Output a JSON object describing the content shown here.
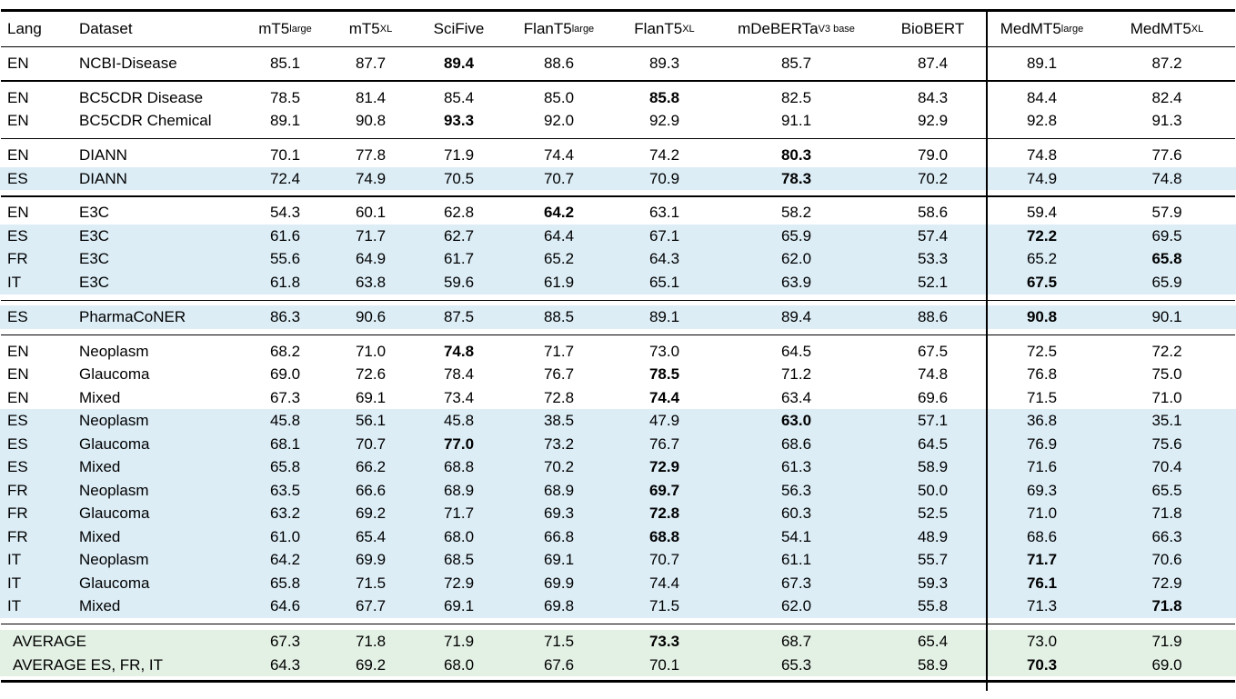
{
  "colors": {
    "highlight_blue": "#dcedf6",
    "highlight_green": "#e3f0e4",
    "rule": "#000000"
  },
  "table": {
    "columns": [
      {
        "label": "Lang",
        "sub": ""
      },
      {
        "label": "Dataset",
        "sub": ""
      },
      {
        "label": "mT5",
        "sub": "large"
      },
      {
        "label": "mT5",
        "sub": "XL"
      },
      {
        "label": "SciFive",
        "sub": ""
      },
      {
        "label": "FlanT5",
        "sub": "large"
      },
      {
        "label": "FlanT5",
        "sub": "XL"
      },
      {
        "label": "mDeBERTa",
        "sub": "V3 base"
      },
      {
        "label": "BioBERT",
        "sub": ""
      },
      {
        "label": "MedMT5",
        "sub": "large"
      },
      {
        "label": "MedMT5",
        "sub": "XL"
      }
    ],
    "sections": [
      {
        "rows": [
          {
            "lang": "EN",
            "dataset": "NCBI-Disease",
            "highlight": null,
            "bold": 2,
            "values": [
              "85.1",
              "87.7",
              "89.4",
              "88.6",
              "89.3",
              "85.7",
              "87.4",
              "89.1",
              "87.2"
            ]
          }
        ]
      },
      {
        "rows": [
          {
            "lang": "EN",
            "dataset": "BC5CDR Disease",
            "highlight": null,
            "bold": 4,
            "values": [
              "78.5",
              "81.4",
              "85.4",
              "85.0",
              "85.8",
              "82.5",
              "84.3",
              "84.4",
              "82.4"
            ]
          },
          {
            "lang": "EN",
            "dataset": "BC5CDR Chemical",
            "highlight": null,
            "bold": 2,
            "values": [
              "89.1",
              "90.8",
              "93.3",
              "92.0",
              "92.9",
              "91.1",
              "92.9",
              "92.8",
              "91.3"
            ]
          }
        ]
      },
      {
        "rows": [
          {
            "lang": "EN",
            "dataset": "DIANN",
            "highlight": null,
            "bold": 5,
            "values": [
              "70.1",
              "77.8",
              "71.9",
              "74.4",
              "74.2",
              "80.3",
              "79.0",
              "74.8",
              "77.6"
            ]
          },
          {
            "lang": "ES",
            "dataset": "DIANN",
            "highlight": "blue",
            "bold": 5,
            "values": [
              "72.4",
              "74.9",
              "70.5",
              "70.7",
              "70.9",
              "78.3",
              "70.2",
              "74.9",
              "74.8"
            ]
          }
        ]
      },
      {
        "rows": [
          {
            "lang": "EN",
            "dataset": "E3C",
            "highlight": null,
            "bold": 3,
            "values": [
              "54.3",
              "60.1",
              "62.8",
              "64.2",
              "63.1",
              "58.2",
              "58.6",
              "59.4",
              "57.9"
            ]
          },
          {
            "lang": "ES",
            "dataset": "E3C",
            "highlight": "blue",
            "bold": 7,
            "values": [
              "61.6",
              "71.7",
              "62.7",
              "64.4",
              "67.1",
              "65.9",
              "57.4",
              "72.2",
              "69.5"
            ]
          },
          {
            "lang": "FR",
            "dataset": "E3C",
            "highlight": "blue",
            "bold": 8,
            "values": [
              "55.6",
              "64.9",
              "61.7",
              "65.2",
              "64.3",
              "62.0",
              "53.3",
              "65.2",
              "65.8"
            ]
          },
          {
            "lang": "IT",
            "dataset": "E3C",
            "highlight": "blue",
            "bold": 7,
            "values": [
              "61.8",
              "63.8",
              "59.6",
              "61.9",
              "65.1",
              "63.9",
              "52.1",
              "67.5",
              "65.9"
            ]
          }
        ]
      },
      {
        "rows": [
          {
            "lang": "ES",
            "dataset": "PharmaCoNER",
            "highlight": "blue",
            "bold": 7,
            "values": [
              "86.3",
              "90.6",
              "87.5",
              "88.5",
              "89.1",
              "89.4",
              "88.6",
              "90.8",
              "90.1"
            ]
          }
        ]
      },
      {
        "rows": [
          {
            "lang": "EN",
            "dataset": "Neoplasm",
            "highlight": null,
            "bold": 2,
            "values": [
              "68.2",
              "71.0",
              "74.8",
              "71.7",
              "73.0",
              "64.5",
              "67.5",
              "72.5",
              "72.2"
            ]
          },
          {
            "lang": "EN",
            "dataset": "Glaucoma",
            "highlight": null,
            "bold": 4,
            "values": [
              "69.0",
              "72.6",
              "78.4",
              "76.7",
              "78.5",
              "71.2",
              "74.8",
              "76.8",
              "75.0"
            ]
          },
          {
            "lang": "EN",
            "dataset": "Mixed",
            "highlight": null,
            "bold": 4,
            "values": [
              "67.3",
              "69.1",
              "73.4",
              "72.8",
              "74.4",
              "63.4",
              "69.6",
              "71.5",
              "71.0"
            ]
          },
          {
            "lang": "ES",
            "dataset": "Neoplasm",
            "highlight": "blue",
            "bold": 5,
            "values": [
              "45.8",
              "56.1",
              "45.8",
              "38.5",
              "47.9",
              "63.0",
              "57.1",
              "36.8",
              "35.1"
            ]
          },
          {
            "lang": "ES",
            "dataset": "Glaucoma",
            "highlight": "blue",
            "bold": 2,
            "values": [
              "68.1",
              "70.7",
              "77.0",
              "73.2",
              "76.7",
              "68.6",
              "64.5",
              "76.9",
              "75.6"
            ]
          },
          {
            "lang": "ES",
            "dataset": "Mixed",
            "highlight": "blue",
            "bold": 4,
            "values": [
              "65.8",
              "66.2",
              "68.8",
              "70.2",
              "72.9",
              "61.3",
              "58.9",
              "71.6",
              "70.4"
            ]
          },
          {
            "lang": "FR",
            "dataset": "Neoplasm",
            "highlight": "blue",
            "bold": 4,
            "values": [
              "63.5",
              "66.6",
              "68.9",
              "68.9",
              "69.7",
              "56.3",
              "50.0",
              "69.3",
              "65.5"
            ]
          },
          {
            "lang": "FR",
            "dataset": "Glaucoma",
            "highlight": "blue",
            "bold": 4,
            "values": [
              "63.2",
              "69.2",
              "71.7",
              "69.3",
              "72.8",
              "60.3",
              "52.5",
              "71.0",
              "71.8"
            ]
          },
          {
            "lang": "FR",
            "dataset": "Mixed",
            "highlight": "blue",
            "bold": 4,
            "values": [
              "61.0",
              "65.4",
              "68.0",
              "66.8",
              "68.8",
              "54.1",
              "48.9",
              "68.6",
              "66.3"
            ]
          },
          {
            "lang": "IT",
            "dataset": "Neoplasm",
            "highlight": "blue",
            "bold": 7,
            "values": [
              "64.2",
              "69.9",
              "68.5",
              "69.1",
              "70.7",
              "61.1",
              "55.7",
              "71.7",
              "70.6"
            ]
          },
          {
            "lang": "IT",
            "dataset": "Glaucoma",
            "highlight": "blue",
            "bold": 7,
            "values": [
              "65.8",
              "71.5",
              "72.9",
              "69.9",
              "74.4",
              "67.3",
              "59.3",
              "76.1",
              "72.9"
            ]
          },
          {
            "lang": "IT",
            "dataset": "Mixed",
            "highlight": "blue",
            "bold": 8,
            "values": [
              "64.6",
              "67.7",
              "69.1",
              "69.8",
              "71.5",
              "62.0",
              "55.8",
              "71.3",
              "71.8"
            ]
          }
        ]
      },
      {
        "avg": true,
        "rows": [
          {
            "lang": "",
            "dataset": "AVERAGE",
            "highlight": "green",
            "bold": 4,
            "values": [
              "67.3",
              "71.8",
              "71.9",
              "71.5",
              "73.3",
              "68.7",
              "65.4",
              "73.0",
              "71.9"
            ]
          },
          {
            "lang": "",
            "dataset": "AVERAGE ES, FR, IT",
            "highlight": "green",
            "bold": 7,
            "values": [
              "64.3",
              "69.2",
              "68.0",
              "67.6",
              "70.1",
              "65.3",
              "58.9",
              "70.3",
              "69.0"
            ]
          }
        ]
      }
    ]
  }
}
